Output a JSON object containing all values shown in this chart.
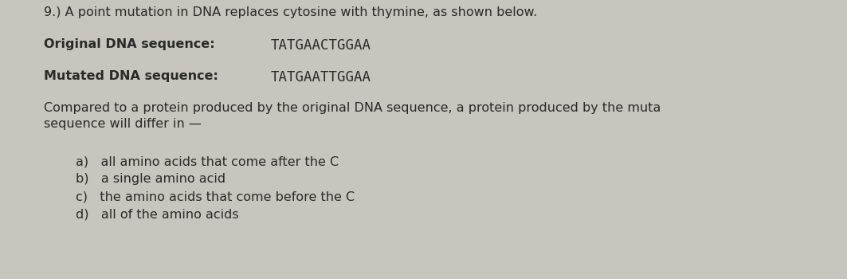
{
  "background_color": "#c8c4be",
  "title_line": "9.) A point mutation in DNA replaces cytosine with thymine, as shown below.",
  "original_label": "Original DNA sequence:",
  "original_seq": "TATGAACTGGAA",
  "mutated_label": "Mutated DNA sequence:",
  "mutated_seq": "TATGAATTGGAA",
  "body_line1": "Compared to a protein produced by the original DNA sequence, a protein produced by the muta",
  "body_line2": "sequence will differ in —",
  "choices": [
    "a)   all amino acids that come after the C",
    "b)   a single amino acid",
    "c)   the amino acids that come before the C",
    "d)   all of the amino acids"
  ],
  "text_color": "#2a2a2a",
  "font_size_title": 11.5,
  "font_size_label": 11.5,
  "font_size_seq": 12.5,
  "font_size_body": 11.5,
  "font_size_choices": 11.5
}
